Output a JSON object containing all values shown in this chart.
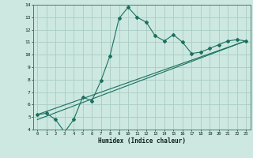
{
  "xlabel": "Humidex (Indice chaleur)",
  "bg_color": "#cce8e0",
  "grid_color": "#aaccc4",
  "line_color": "#1a7060",
  "xlim": [
    -0.5,
    23.5
  ],
  "ylim": [
    4,
    14
  ],
  "xticks": [
    0,
    1,
    2,
    3,
    4,
    5,
    6,
    7,
    8,
    9,
    10,
    11,
    12,
    13,
    14,
    15,
    16,
    17,
    18,
    19,
    20,
    21,
    22,
    23
  ],
  "yticks": [
    4,
    5,
    6,
    7,
    8,
    9,
    10,
    11,
    12,
    13,
    14
  ],
  "curve1_x": [
    0,
    1,
    2,
    3,
    4,
    5,
    6,
    7,
    8,
    9,
    10,
    11,
    12,
    13,
    14,
    15,
    16,
    17,
    18,
    19,
    20,
    21,
    22,
    23
  ],
  "curve1_y": [
    5.2,
    5.3,
    4.8,
    3.8,
    4.8,
    6.6,
    6.3,
    7.9,
    9.9,
    12.9,
    13.8,
    13.0,
    12.6,
    11.5,
    11.1,
    11.6,
    11.0,
    10.1,
    10.2,
    10.5,
    10.8,
    11.1,
    11.2,
    11.1
  ],
  "line2_x": [
    0,
    23
  ],
  "line2_y": [
    5.2,
    11.1
  ],
  "line3_x": [
    0,
    23
  ],
  "line3_y": [
    4.8,
    11.1
  ]
}
